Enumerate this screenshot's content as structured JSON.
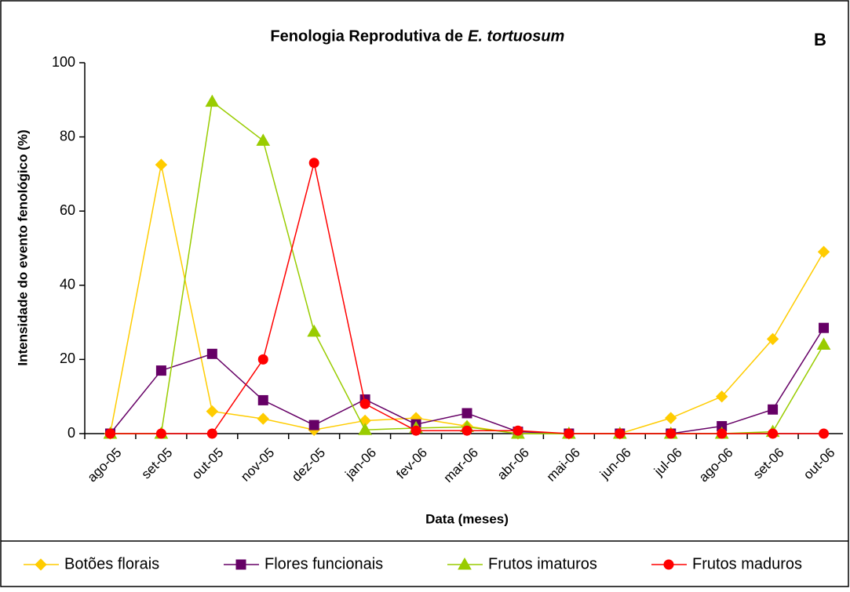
{
  "chart_data": {
    "type": "line",
    "title": "Fenologia Reprodutiva de",
    "title_italic": "E. tortuosum",
    "annotation": "B",
    "x_label": "Data (meses)",
    "y_label": "Intensidade do evento fenológico (%)",
    "categories": [
      "ago-05",
      "set-05",
      "out-05",
      "nov-05",
      "dez-05",
      "jan-06",
      "fev-06",
      "mar-06",
      "abr-06",
      "mai-06",
      "jun-06",
      "jul-06",
      "ago-06",
      "set-06",
      "out-06"
    ],
    "series": [
      {
        "name": "Botões florais",
        "color": "#ffcc00",
        "marker": "diamond",
        "values": [
          0,
          72.5,
          6,
          4,
          1,
          3.5,
          4.2,
          2,
          0,
          0,
          0,
          4.2,
          10,
          25.5,
          49
        ]
      },
      {
        "name": "Flores funcionais",
        "color": "#660066",
        "marker": "square",
        "values": [
          0,
          17,
          21.5,
          9,
          2.3,
          9.2,
          2.5,
          5.5,
          0.5,
          0,
          0,
          0,
          2,
          6.5,
          28.5
        ]
      },
      {
        "name": "Frutos imaturos",
        "color": "#99cc00",
        "marker": "triangle",
        "values": [
          0,
          0,
          89.5,
          79,
          27.5,
          1,
          1.5,
          1.8,
          0,
          0,
          0,
          0,
          0,
          0.5,
          24
        ]
      },
      {
        "name": "Frutos maduros",
        "color": "#ff0000",
        "marker": "circle",
        "values": [
          0,
          0,
          0,
          20,
          73,
          8,
          0.8,
          0.8,
          0.8,
          0,
          0,
          0,
          0,
          0,
          0
        ]
      }
    ],
    "ylim": [
      0,
      100
    ],
    "yticks": [
      0,
      20,
      40,
      60,
      80,
      100
    ],
    "grid": false,
    "legend": "bottom"
  }
}
